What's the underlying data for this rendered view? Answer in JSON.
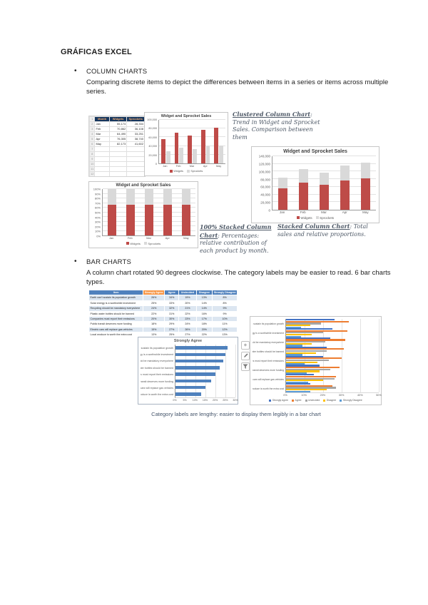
{
  "page": {
    "title": "GRÁFICAS EXCEL"
  },
  "sections": {
    "column_charts": {
      "bullet": "•",
      "heading": "COLUMN CHARTS",
      "description": "Comparing discrete items to depict the differences between items in a series or items across multiple series."
    },
    "bar_charts": {
      "bullet": "•",
      "heading": "BAR CHARTS",
      "description": "A column chart rotated 90 degrees clockwise. The category labels may be easier to read. 6 bar charts types."
    }
  },
  "annotations": {
    "clustered": {
      "lead": "Clustered Column Chart",
      "text": ": Trend in Widget and Sprocket Sales. Comparison between them"
    },
    "stacked100": {
      "lead": "100% Stacked Column Chart",
      "text": ": Percentages: relative contribution of each product by month."
    },
    "stacked": {
      "lead": "Stacked Column Chart",
      "text": ": Total sales and relative proportions."
    }
  },
  "figure_caption": "Category labels are lengthy: easier to display them legibly in a bar chart",
  "chart_tools": {
    "add": "+",
    "styles_icon": "paintbrush",
    "filters_icon": "funnel"
  },
  "spreadsheet": {
    "headers": [
      "Month",
      "Widgets",
      "Sprockets"
    ],
    "rows": [
      [
        "Jan",
        "55,174",
        "28,334"
      ],
      [
        "Feb",
        "70,862",
        "36,108"
      ],
      [
        "Mar",
        "64,490",
        "33,251"
      ],
      [
        "Apr",
        "76,305",
        "38,740"
      ],
      [
        "May",
        "82,173",
        "41,602"
      ]
    ],
    "empty_rows": 6
  },
  "survey_table": {
    "headers": [
      "Item",
      "Strongly Agree",
      "Agree",
      "Undecided",
      "Disagree",
      "Strongly Disagree"
    ],
    "rows": [
      [
        "Earth can't sustain its population growth",
        "26%",
        "34%",
        "19%",
        "13%",
        "8%"
      ],
      [
        "Solar energy is a worthwhile investment",
        "25%",
        "33%",
        "20%",
        "14%",
        "8%"
      ],
      [
        "Recycling should be mandatory everywhere",
        "24%",
        "32%",
        "21%",
        "14%",
        "9%"
      ],
      [
        "Plastic water bottles should be banned",
        "22%",
        "31%",
        "22%",
        "16%",
        "9%"
      ],
      [
        "Companies must report their emissions",
        "20%",
        "30%",
        "23%",
        "17%",
        "10%"
      ],
      [
        "Public transit deserves more funding",
        "18%",
        "29%",
        "24%",
        "18%",
        "11%"
      ],
      [
        "Electric cars will replace gas vehicles",
        "15%",
        "27%",
        "26%",
        "20%",
        "12%"
      ],
      [
        "Local produce is worth the extra cost",
        "13%",
        "25%",
        "27%",
        "22%",
        "13%"
      ]
    ]
  },
  "chart_data": [
    {
      "id": "clustered-column",
      "type": "bar",
      "orientation": "vertical",
      "mode": "clustered",
      "title": "Widget and Sprocket Sales",
      "categories": [
        "Jan",
        "Feb",
        "Mar",
        "Apr",
        "May"
      ],
      "series": [
        {
          "name": "Widgets",
          "color": "#BE4B48",
          "values": [
            55174,
            70862,
            64490,
            76305,
            82173
          ]
        },
        {
          "name": "Sprockets",
          "color": "#D9D9D9",
          "values": [
            28334,
            36108,
            33251,
            38740,
            41602
          ]
        }
      ],
      "ylim": [
        0,
        100000
      ],
      "ytick_labels": [
        "0",
        "20,000",
        "40,000",
        "60,000",
        "80,000",
        "100,000"
      ],
      "show_legend": true,
      "legend_position": "bottom",
      "grid": true
    },
    {
      "id": "stacked-column",
      "type": "bar",
      "orientation": "vertical",
      "mode": "stacked",
      "title": "Widget and Sprocket Sales",
      "categories": [
        "Jan",
        "Feb",
        "Mar",
        "Apr",
        "May"
      ],
      "series": [
        {
          "name": "Widgets",
          "color": "#BE4B48",
          "values": [
            55174,
            70862,
            64490,
            76305,
            82173
          ]
        },
        {
          "name": "Sprockets",
          "color": "#D9D9D9",
          "values": [
            28334,
            36108,
            33251,
            38740,
            41602
          ]
        }
      ],
      "ylim": [
        0,
        140000
      ],
      "ytick_labels": [
        "0",
        "20,000",
        "40,000",
        "60,000",
        "80,000",
        "100,000",
        "120,000",
        "140,000"
      ],
      "show_legend": true,
      "legend_position": "bottom",
      "grid": true
    },
    {
      "id": "stacked-100-column",
      "type": "bar",
      "orientation": "vertical",
      "mode": "stacked100",
      "title": "Widget and Sprocket Sales",
      "categories": [
        "Jan",
        "Feb",
        "Mar",
        "Apr",
        "May"
      ],
      "series": [
        {
          "name": "Widgets",
          "color": "#BE4B48",
          "values": [
            55174,
            70862,
            64490,
            76305,
            82173
          ]
        },
        {
          "name": "Sprockets",
          "color": "#D9D9D9",
          "values": [
            28334,
            36108,
            33251,
            38740,
            41602
          ]
        }
      ],
      "ylim": [
        0,
        100
      ],
      "ytick_labels": [
        "0%",
        "10%",
        "20%",
        "30%",
        "40%",
        "50%",
        "60%",
        "70%",
        "80%",
        "90%",
        "100%"
      ],
      "show_legend": true,
      "legend_position": "bottom",
      "grid": true
    },
    {
      "id": "strongly-agree-bar",
      "type": "bar",
      "orientation": "horizontal",
      "mode": "clustered",
      "title": "Strongly Agree",
      "categories": [
        "Earth can't sustain its population growth",
        "Solar energy is a worthwhile investment",
        "Recycling should be mandatory everywhere",
        "Plastic water bottles should be banned",
        "Companies must report their emissions",
        "Public transit deserves more funding",
        "Electric cars will replace gas vehicles",
        "Local produce is worth the extra cost"
      ],
      "series": [
        {
          "name": "Strongly Agree",
          "color": "#4F81BD",
          "values": [
            26,
            25,
            24,
            22,
            20,
            18,
            15,
            13
          ]
        }
      ],
      "xlim": [
        0,
        30
      ],
      "xtick_labels": [
        "0%",
        "5%",
        "10%",
        "15%",
        "20%",
        "25%",
        "30%"
      ],
      "show_legend": false,
      "grid": true
    },
    {
      "id": "survey-grouped-bar",
      "type": "bar",
      "orientation": "horizontal",
      "mode": "grouped",
      "title": "",
      "categories": [
        "Earth can't sustain its population growth",
        "Solar energy is a worthwhile investment",
        "Recycling should be mandatory everywhere",
        "Plastic water bottles should be banned",
        "Companies must report their emissions",
        "Public transit deserves more funding",
        "Electric cars will replace gas vehicles",
        "Local produce is worth the extra cost"
      ],
      "series": [
        {
          "name": "Strongly Agree",
          "color": "#4472C4",
          "values": [
            26,
            25,
            24,
            22,
            20,
            18,
            15,
            13
          ]
        },
        {
          "name": "Agree",
          "color": "#ED7D31",
          "values": [
            34,
            33,
            32,
            31,
            30,
            29,
            27,
            25
          ]
        },
        {
          "name": "Undecided",
          "color": "#A5A5A5",
          "values": [
            19,
            20,
            21,
            22,
            23,
            24,
            26,
            27
          ]
        },
        {
          "name": "Disagree",
          "color": "#FFC000",
          "values": [
            13,
            14,
            14,
            16,
            17,
            18,
            20,
            22
          ]
        },
        {
          "name": "Strongly Disagree",
          "color": "#5B9BD5",
          "values": [
            8,
            8,
            9,
            9,
            10,
            11,
            12,
            13
          ]
        }
      ],
      "xlim": [
        0,
        50
      ],
      "xtick_labels": [
        "0%",
        "10%",
        "20%",
        "30%",
        "40%",
        "50%"
      ],
      "show_legend": true,
      "legend_position": "bottom",
      "grid": true
    }
  ]
}
